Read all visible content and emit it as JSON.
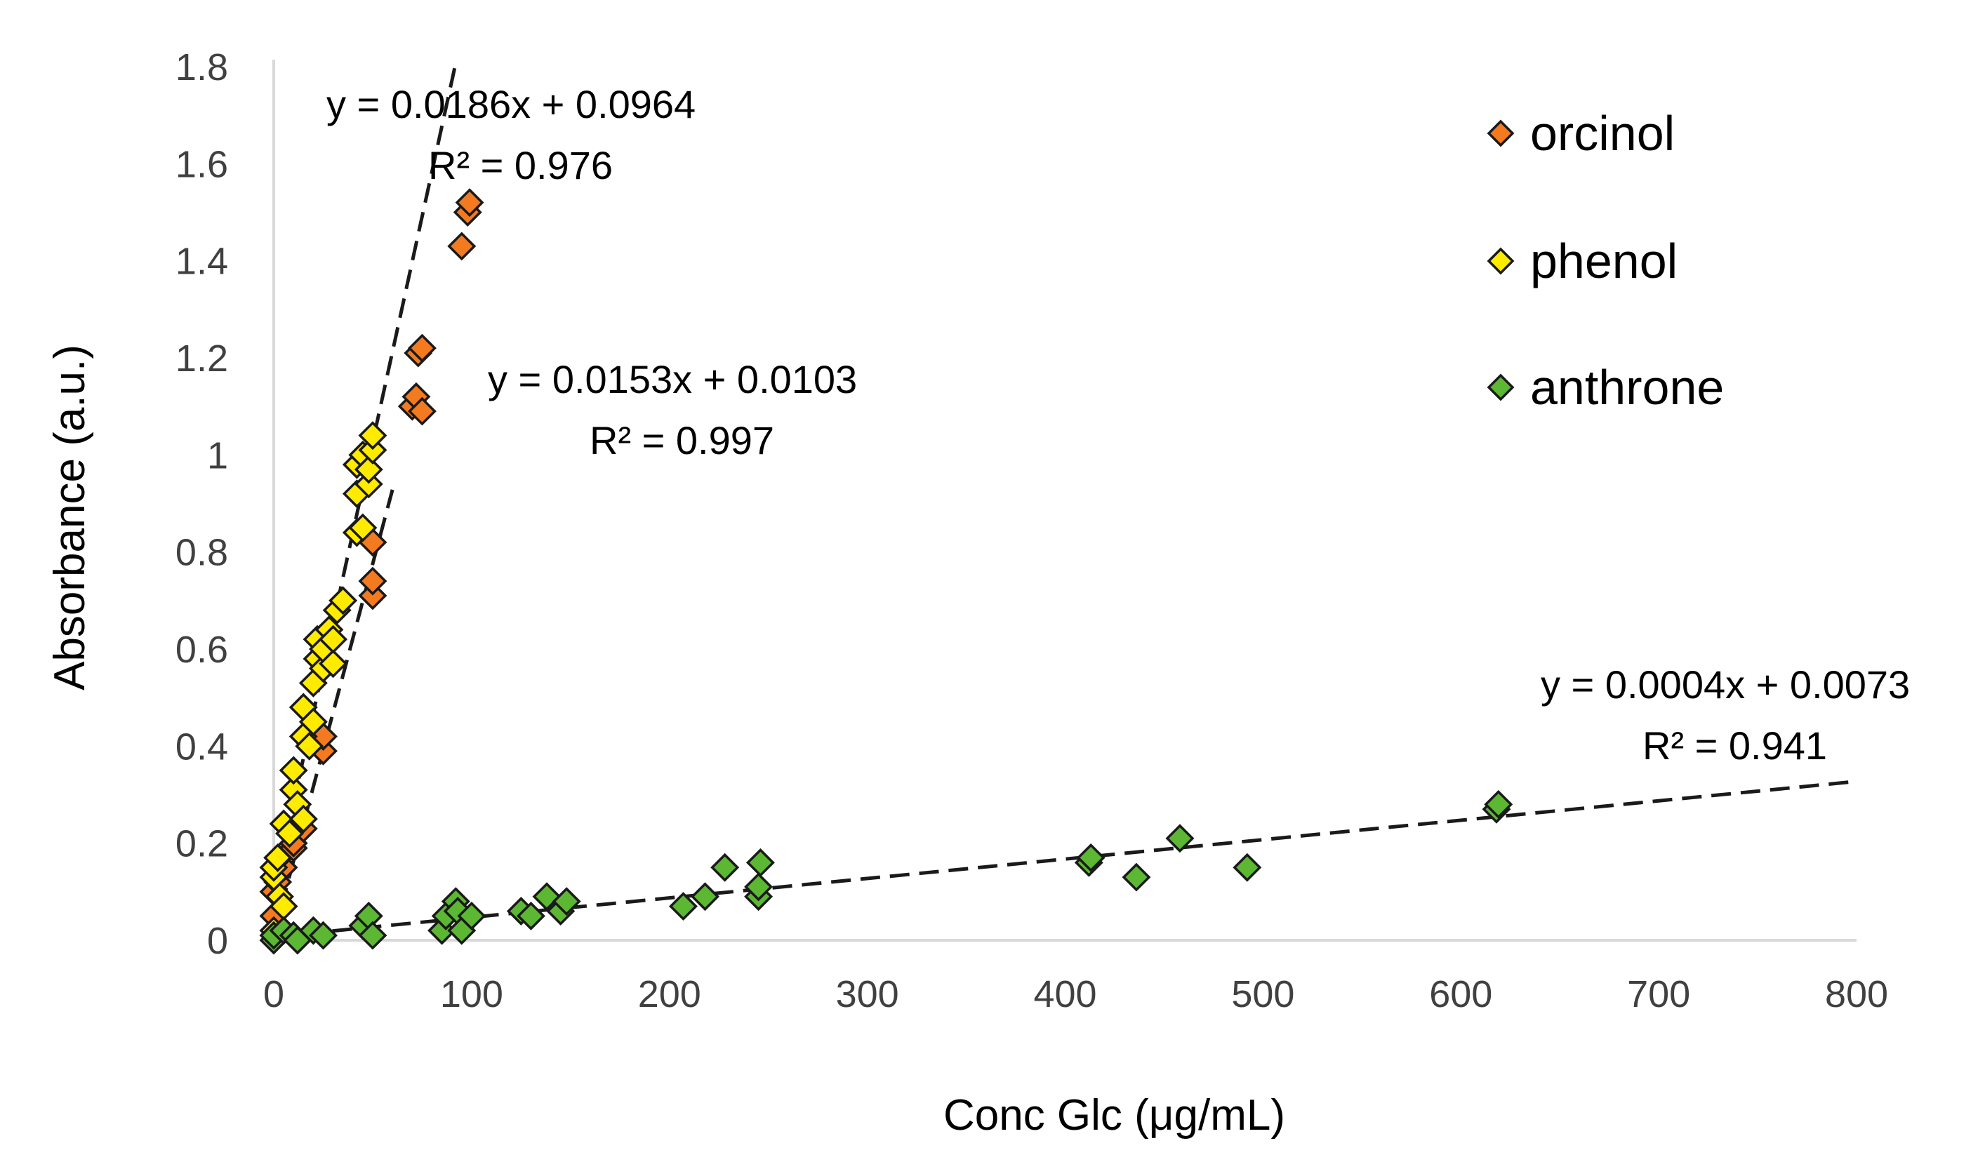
{
  "chart_data": {
    "type": "scatter",
    "title": "",
    "xlabel": "Conc Glc (μg/mL)",
    "ylabel": "Absorbance (a.u.)",
    "xlim": [
      0,
      800
    ],
    "ylim": [
      0,
      1.8
    ],
    "x_ticks": [
      "0",
      "100",
      "200",
      "300",
      "400",
      "500",
      "600",
      "700",
      "800"
    ],
    "y_ticks": [
      "0",
      "0.2",
      "0.4",
      "0.6",
      "0.8",
      "1",
      "1.2",
      "1.4",
      "1.6",
      "1.8"
    ],
    "grid": false,
    "legend_position": "top-right",
    "series": [
      {
        "name": "orcinol",
        "color": "#F47A20",
        "trendline": {
          "slope": 0.0186,
          "intercept": 0.0964,
          "x_range": [
            0,
            100
          ],
          "equation": "y = 0.0186x + 0.0964",
          "r2": "R² = 0.976"
        },
        "points": [
          [
            0,
            0.05
          ],
          [
            0,
            0.1
          ],
          [
            2,
            0.12
          ],
          [
            5,
            0.15
          ],
          [
            5,
            0.18
          ],
          [
            10,
            0.19
          ],
          [
            10,
            0.2
          ],
          [
            15,
            0.23
          ],
          [
            15,
            0.25
          ],
          [
            20,
            0.41
          ],
          [
            25,
            0.39
          ],
          [
            25,
            0.42
          ],
          [
            50,
            0.71
          ],
          [
            50,
            0.74
          ],
          [
            50,
            0.82
          ],
          [
            70,
            1.1
          ],
          [
            72,
            1.12
          ],
          [
            75,
            1.09
          ],
          [
            73,
            1.21
          ],
          [
            75,
            1.22
          ],
          [
            95,
            1.43
          ],
          [
            98,
            1.5
          ],
          [
            99,
            1.52
          ]
        ]
      },
      {
        "name": "phenol",
        "color": "#FFEB00",
        "trendline": {
          "slope": 0.0153,
          "intercept": 0.0103,
          "x_range": [
            0,
            60
          ],
          "equation": "y = 0.0153x + 0.0103",
          "r2": "R² = 0.997"
        },
        "points": [
          [
            0,
            0.02
          ],
          [
            0,
            0.13
          ],
          [
            0,
            0.15
          ],
          [
            2,
            0.17
          ],
          [
            3,
            0.09
          ],
          [
            5,
            0.07
          ],
          [
            5,
            0.24
          ],
          [
            8,
            0.22
          ],
          [
            10,
            0.31
          ],
          [
            10,
            0.35
          ],
          [
            12,
            0.28
          ],
          [
            15,
            0.25
          ],
          [
            15,
            0.42
          ],
          [
            15,
            0.48
          ],
          [
            18,
            0.4
          ],
          [
            20,
            0.45
          ],
          [
            20,
            0.53
          ],
          [
            22,
            0.58
          ],
          [
            22,
            0.62
          ],
          [
            25,
            0.56
          ],
          [
            25,
            0.6
          ],
          [
            28,
            0.64
          ],
          [
            30,
            0.57
          ],
          [
            30,
            0.62
          ],
          [
            32,
            0.68
          ],
          [
            35,
            0.7
          ],
          [
            42,
            0.84
          ],
          [
            42,
            0.92
          ],
          [
            42,
            0.98
          ],
          [
            45,
            1.0
          ],
          [
            45,
            0.85
          ],
          [
            48,
            0.94
          ],
          [
            48,
            0.97
          ],
          [
            50,
            1.01
          ],
          [
            50,
            1.04
          ]
        ]
      },
      {
        "name": "anthrone",
        "color": "#5CB832",
        "trendline": {
          "slope": 0.0004,
          "intercept": 0.0073,
          "x_range": [
            0,
            800
          ],
          "equation": "y = 0.0004x + 0.0073",
          "r2": "R² = 0.941"
        },
        "points": [
          [
            0,
            0.0
          ],
          [
            0,
            0.01
          ],
          [
            5,
            0.02
          ],
          [
            10,
            0.01
          ],
          [
            12,
            0.0
          ],
          [
            20,
            0.02
          ],
          [
            25,
            0.01
          ],
          [
            45,
            0.03
          ],
          [
            48,
            0.05
          ],
          [
            50,
            0.01
          ],
          [
            85,
            0.02
          ],
          [
            87,
            0.05
          ],
          [
            92,
            0.08
          ],
          [
            93,
            0.06
          ],
          [
            95,
            0.02
          ],
          [
            100,
            0.05
          ],
          [
            125,
            0.06
          ],
          [
            130,
            0.05
          ],
          [
            138,
            0.09
          ],
          [
            145,
            0.06
          ],
          [
            148,
            0.08
          ],
          [
            207,
            0.07
          ],
          [
            218,
            0.09
          ],
          [
            228,
            0.15
          ],
          [
            245,
            0.09
          ],
          [
            245,
            0.11
          ],
          [
            246,
            0.16
          ],
          [
            412,
            0.16
          ],
          [
            413,
            0.17
          ],
          [
            436,
            0.13
          ],
          [
            458,
            0.21
          ],
          [
            492,
            0.15
          ],
          [
            618,
            0.27
          ],
          [
            619,
            0.28
          ]
        ]
      }
    ],
    "annotations": [
      {
        "series": "orcinol",
        "equation": "y = 0.0186x + 0.0964",
        "r2": "R² = 0.976"
      },
      {
        "series": "phenol",
        "equation": "y = 0.0153x + 0.0103",
        "r2": "R² = 0.997"
      },
      {
        "series": "anthrone",
        "equation": "y = 0.0004x + 0.0073",
        "r2": "R² = 0.941"
      }
    ]
  }
}
